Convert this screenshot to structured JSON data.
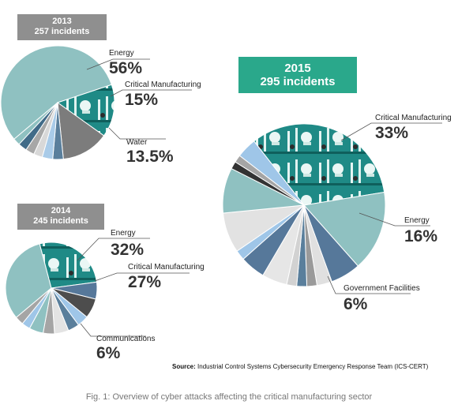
{
  "chart_data": [
    {
      "type": "pie",
      "banner": {
        "year": "2013",
        "incidents": "257 incidents"
      },
      "highlight_color": "#8fc1c1",
      "slices": [
        {
          "label": "Energy",
          "pct": "56%",
          "value": 56,
          "color": "#8fc1c1"
        },
        {
          "label": "Critical Manufacturing",
          "pct": "15%",
          "value": 15,
          "color": "#1f8a86",
          "photo": true
        },
        {
          "label": "Water",
          "pct": "13.5%",
          "value": 13.5,
          "color": "#7c7c7c"
        },
        {
          "label": "",
          "value": 3,
          "color": "#5a7f9c"
        },
        {
          "label": "",
          "value": 3,
          "color": "#a9cbe8"
        },
        {
          "label": "",
          "value": 2.5,
          "color": "#d8d8d8"
        },
        {
          "label": "",
          "value": 2.5,
          "color": "#a7a7a7"
        },
        {
          "label": "",
          "value": 2.5,
          "color": "#416b88"
        },
        {
          "label": "",
          "value": 2,
          "color": "#8fc1c1"
        }
      ]
    },
    {
      "type": "pie",
      "banner": {
        "year": "2014",
        "incidents": "245 incidents"
      },
      "slices": [
        {
          "label": "Energy",
          "pct": "32%",
          "value": 32,
          "color": "#8fc1c1"
        },
        {
          "label": "Critical Manufacturing",
          "pct": "27%",
          "value": 27,
          "color": "#1f8a86",
          "photo": true
        },
        {
          "label": "Communications",
          "pct": "6%",
          "value": 6,
          "color": "#56789a"
        },
        {
          "label": "",
          "value": 7,
          "color": "#4d4d4d"
        },
        {
          "label": "",
          "value": 4,
          "color": "#9fc6e8"
        },
        {
          "label": "",
          "value": 4,
          "color": "#5a7f9c"
        },
        {
          "label": "",
          "value": 5,
          "color": "#e3e3e3"
        },
        {
          "label": "",
          "value": 4,
          "color": "#a5a5a5"
        },
        {
          "label": "",
          "value": 5,
          "color": "#8fc1c1"
        },
        {
          "label": "",
          "value": 3,
          "color": "#9fc6e8"
        },
        {
          "label": "",
          "value": 3,
          "color": "#a5a5a5"
        }
      ]
    },
    {
      "type": "pie",
      "banner": {
        "year": "2015",
        "incidents": "295 incidents"
      },
      "slices": [
        {
          "label": "Critical Manufacturing",
          "pct": "33%",
          "value": 33,
          "color": "#1f8a86",
          "photo": true
        },
        {
          "label": "Energy",
          "pct": "16%",
          "value": 16,
          "color": "#8fc1c1"
        },
        {
          "label": "Government Facilities",
          "pct": "6%",
          "value": 6,
          "color": "#56789a"
        },
        {
          "label": "",
          "value": 3,
          "color": "#e0e0e0"
        },
        {
          "label": "",
          "value": 2,
          "color": "#9a9a9a"
        },
        {
          "label": "",
          "value": 2,
          "color": "#5a7f9c"
        },
        {
          "label": "",
          "value": 2,
          "color": "#d2d2d2"
        },
        {
          "label": "",
          "value": 5,
          "color": "#e6e6e6"
        },
        {
          "label": "",
          "value": 5,
          "color": "#56789a"
        },
        {
          "label": "",
          "value": 2,
          "color": "#9fc6e8"
        },
        {
          "label": "",
          "value": 8,
          "color": "#e2e2e2"
        },
        {
          "label": "",
          "value": 9,
          "color": "#8fc1c1"
        },
        {
          "label": "",
          "value": 1.5,
          "color": "#333333"
        },
        {
          "label": "",
          "value": 1.5,
          "color": "#a5a5a5"
        },
        {
          "label": "",
          "value": 4,
          "color": "#9fc6e8"
        }
      ]
    }
  ],
  "source": {
    "label": "Source:",
    "text": "Industrial Control Systems Cybersecurity Emergency Response Team (ICS-CERT)"
  },
  "caption": "Fig. 1: Overview of cyber attacks affecting the critical manufacturing sector"
}
